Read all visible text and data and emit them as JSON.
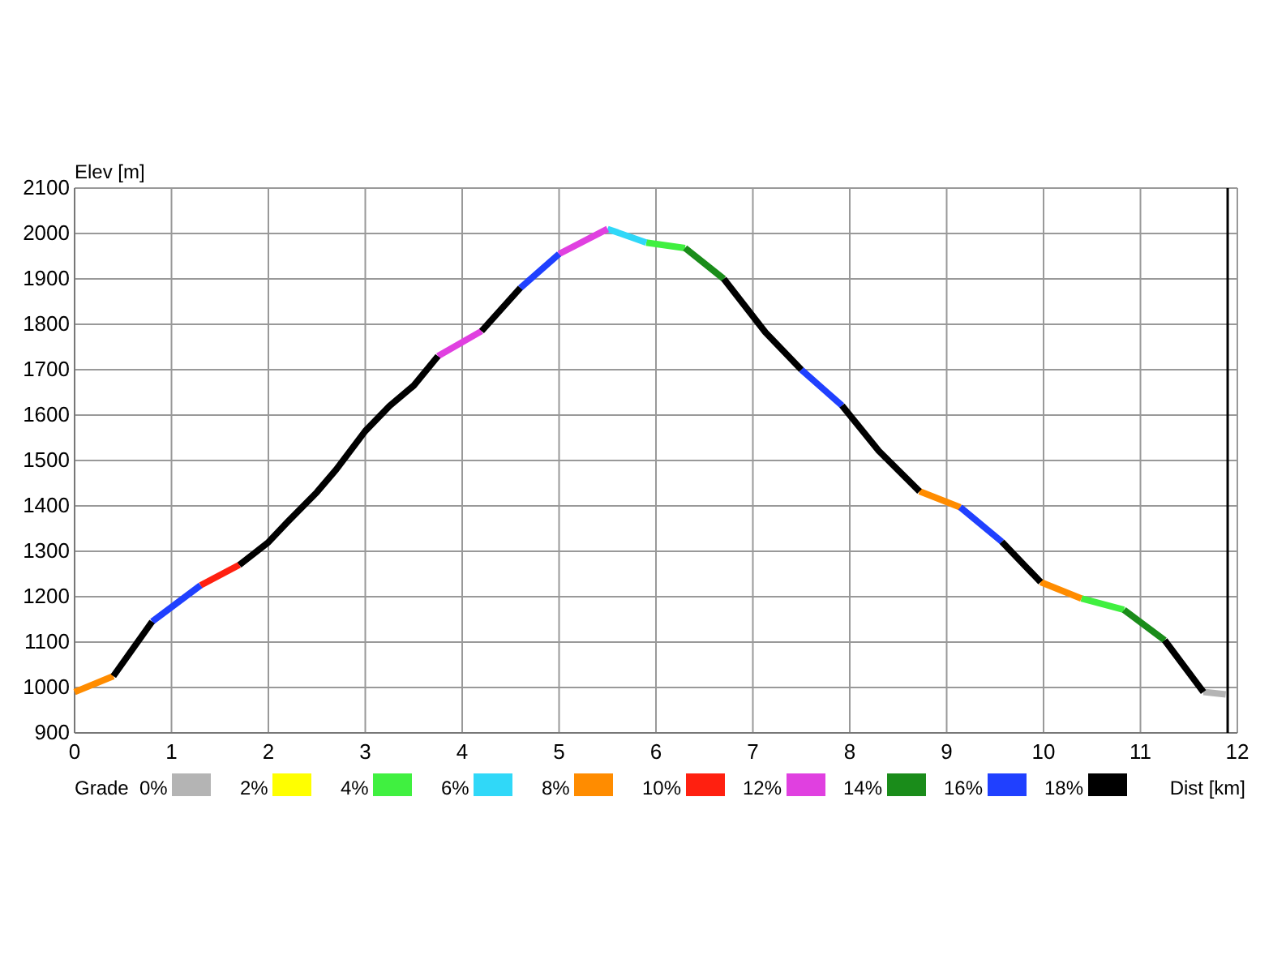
{
  "chart_data": {
    "type": "line",
    "xlabel": "Dist [km]",
    "ylabel": "Elev [m]",
    "legend_title": "Grade",
    "legend": "bottom",
    "grid": true,
    "line_style": "solid",
    "marker": "none",
    "xlim": [
      0,
      12
    ],
    "xticks": [
      0,
      1,
      2,
      3,
      4,
      5,
      6,
      7,
      8,
      9,
      10,
      11,
      12
    ],
    "ylim": [
      900,
      2100
    ],
    "yticks": [
      900,
      1000,
      1100,
      1200,
      1300,
      1400,
      1500,
      1600,
      1700,
      1800,
      1900,
      2000,
      2100
    ],
    "series": [
      {
        "name": "0%",
        "color": "#b4b4b4",
        "x": [
          11.65,
          11.88
        ],
        "values": [
          990,
          985
        ]
      },
      {
        "name": "2%",
        "color": "#ffff00"
      },
      {
        "name": "4%",
        "color": "#40f040",
        "x": [
          5.9,
          6.3,
          6.5,
          10.39,
          10.83
        ],
        "values": [
          1980,
          1968,
          null,
          1196,
          1171
        ]
      },
      {
        "name": "6%",
        "color": "#30d8f8",
        "x": [
          5.5,
          5.9
        ],
        "values": [
          2010,
          1980
        ]
      },
      {
        "name": "8%",
        "color": "#ff8c00",
        "x": [
          0,
          0.4,
          4.5,
          8.72,
          9.14,
          9.5,
          9.97,
          10.39
        ],
        "values": [
          990,
          1025,
          null,
          1432,
          1397,
          null,
          1232,
          1196
        ]
      },
      {
        "name": "10%",
        "color": "#ff2010",
        "x": [
          1.3,
          1.7
        ],
        "values": [
          1225,
          1270
        ]
      },
      {
        "name": "12%",
        "color": "#e040e0",
        "x": [
          3.75,
          4.2,
          4.6,
          5.0,
          5.5
        ],
        "values": [
          1730,
          1785,
          null,
          1955,
          2010
        ]
      },
      {
        "name": "14%",
        "color": "#1a8c1a",
        "x": [
          6.3,
          6.7,
          9,
          10.83,
          11.25
        ],
        "values": [
          1968,
          1900,
          null,
          1171,
          1104
        ]
      },
      {
        "name": "16%",
        "color": "#2040ff",
        "x": [
          0.8,
          1.3,
          2,
          4.6,
          5.0,
          6,
          7.5,
          7.92,
          8.5,
          9.14,
          9.57
        ],
        "values": [
          1145,
          1225,
          null,
          1880,
          1955,
          null,
          1700,
          1621,
          null,
          1397,
          1321
        ]
      },
      {
        "name": "18%",
        "color": "#000000",
        "x": [
          0.4,
          0.8,
          1.2,
          1.7,
          2.0,
          2.2,
          2.5,
          2.7,
          3.0,
          3.25,
          3.5,
          3.75,
          4,
          4.2,
          4.6,
          5.5,
          6.7,
          7.13,
          7.5,
          7.7,
          7.92,
          8.3,
          8.72,
          9.3,
          9.57,
          9.97,
          10.5,
          11.25,
          11.65
        ],
        "values": [
          1025,
          1145,
          null,
          1270,
          1320,
          1365,
          1430,
          1480,
          1565,
          1620,
          1665,
          1730,
          null,
          1785,
          1880,
          null,
          1900,
          1782,
          1700,
          null,
          1621,
          1521,
          1432,
          null,
          1321,
          1232,
          null,
          1104,
          990
        ]
      }
    ],
    "ref_lines": [
      {
        "axis": "x",
        "value": 11.9,
        "color": "#000000"
      }
    ]
  }
}
